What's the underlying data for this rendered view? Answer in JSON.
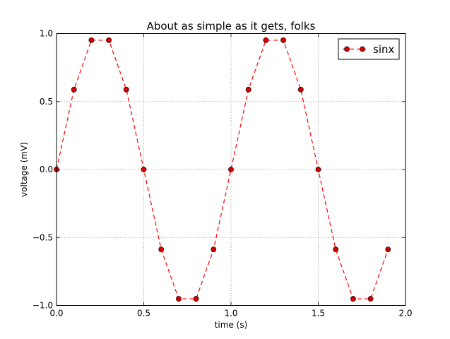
{
  "chart_data": {
    "type": "line",
    "title": "About as simple as it gets, folks",
    "xlabel": "time (s)",
    "ylabel": "voltage (mV)",
    "xlim": [
      0.0,
      2.0
    ],
    "ylim": [
      -1.0,
      1.0
    ],
    "xticks": [
      0.0,
      0.5,
      1.0,
      1.5,
      2.0
    ],
    "xtick_labels": [
      "0.0",
      "0.5",
      "1.0",
      "1.5",
      "2.0"
    ],
    "yticks": [
      1.0,
      0.5,
      0.0,
      -0.5,
      -1.0
    ],
    "ytick_labels": [
      "1.0",
      "0.5",
      "0.0",
      "−0.5",
      "−1.0"
    ],
    "grid": true,
    "legend_position": "top-right",
    "series": [
      {
        "name": "sinx",
        "color": "#ff0000",
        "marker_color": "#d40000",
        "line_style": "dashed",
        "marker": "circle",
        "x": [
          0.0,
          0.1,
          0.2,
          0.3,
          0.4,
          0.5,
          0.6,
          0.7,
          0.8,
          0.9,
          1.0,
          1.1,
          1.2,
          1.3,
          1.4,
          1.5,
          1.6,
          1.7,
          1.8,
          1.9
        ],
        "y": [
          0.0,
          0.588,
          0.951,
          0.951,
          0.588,
          0.0,
          -0.588,
          -0.951,
          -0.951,
          -0.588,
          0.0,
          0.588,
          0.951,
          0.951,
          0.588,
          0.0,
          -0.588,
          -0.951,
          -0.951,
          -0.588
        ]
      }
    ]
  }
}
